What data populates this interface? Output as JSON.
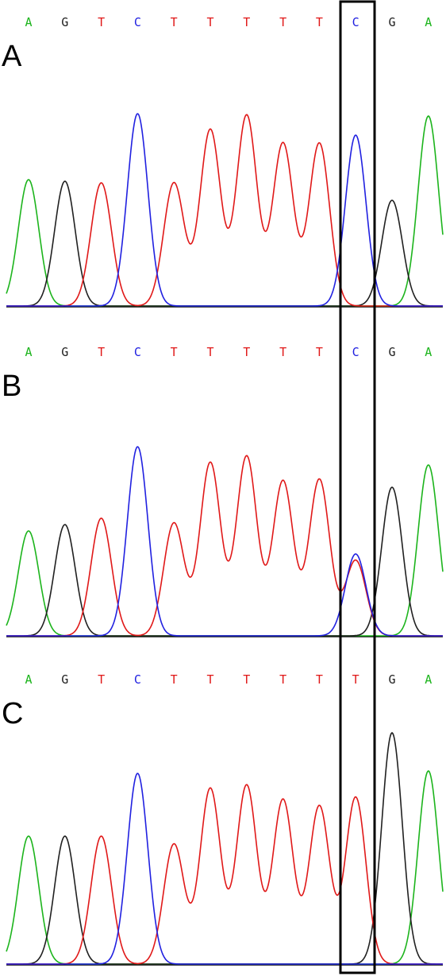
{
  "colors": {
    "A": "#1cb41c",
    "G": "#202020",
    "T": "#e01818",
    "C": "#2020e0"
  },
  "panels": [
    {
      "label": "A",
      "peaks": [
        {
          "base": "A",
          "height": 159
        },
        {
          "base": "G",
          "height": 157
        },
        {
          "base": "T",
          "height": 155
        },
        {
          "base": "C",
          "height": 242
        },
        {
          "base": "T",
          "height": 155
        },
        {
          "base": "T",
          "height": 222
        },
        {
          "base": "T",
          "height": 240
        },
        {
          "base": "T",
          "height": 205
        },
        {
          "base": "T",
          "height": 205
        },
        {
          "base": "C",
          "height": 215
        },
        {
          "base": "G",
          "height": 133
        },
        {
          "base": "A",
          "height": 239
        }
      ]
    },
    {
      "label": "B",
      "peaks": [
        {
          "base": "A",
          "height": 132
        },
        {
          "base": "G",
          "height": 140
        },
        {
          "base": "T",
          "height": 148
        },
        {
          "base": "C",
          "height": 238
        },
        {
          "base": "T",
          "height": 142
        },
        {
          "base": "T",
          "height": 218
        },
        {
          "base": "T",
          "height": 226
        },
        {
          "base": "T",
          "height": 195
        },
        {
          "base": "T",
          "height": 197
        },
        {
          "base": "C",
          "height": 103,
          "secondary": {
            "base": "T",
            "height": 95
          }
        },
        {
          "base": "G",
          "height": 187
        },
        {
          "base": "A",
          "height": 215
        }
      ]
    },
    {
      "label": "C",
      "peaks": [
        {
          "base": "A",
          "height": 161
        },
        {
          "base": "G",
          "height": 161
        },
        {
          "base": "T",
          "height": 161
        },
        {
          "base": "C",
          "height": 240
        },
        {
          "base": "T",
          "height": 151
        },
        {
          "base": "T",
          "height": 221
        },
        {
          "base": "T",
          "height": 225
        },
        {
          "base": "T",
          "height": 207
        },
        {
          "base": "T",
          "height": 199
        },
        {
          "base": "T",
          "height": 210
        },
        {
          "base": "G",
          "height": 291
        },
        {
          "base": "A",
          "height": 243
        }
      ]
    }
  ]
}
